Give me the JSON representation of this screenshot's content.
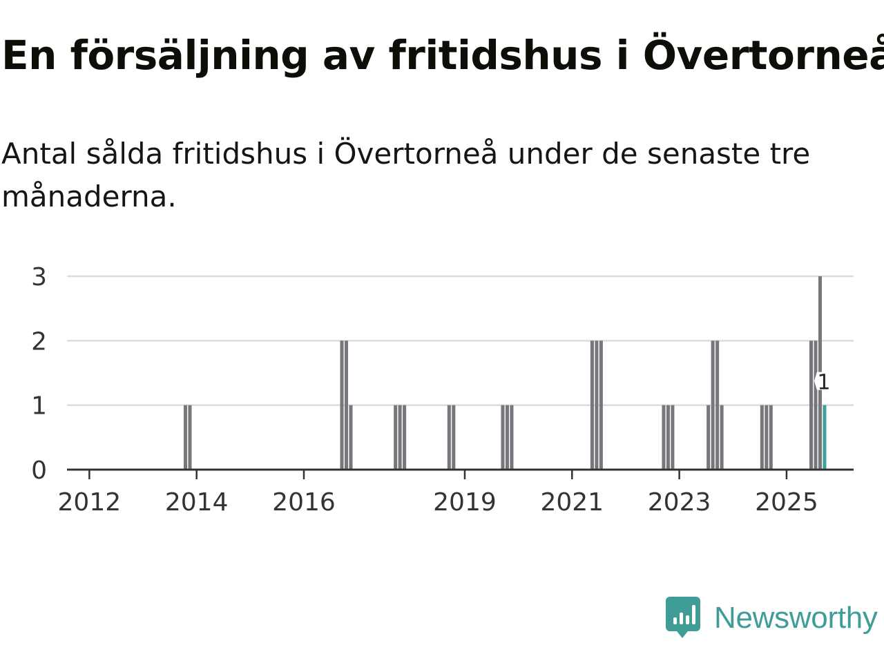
{
  "header": {
    "title": "En försäljning av fritidshus i Övertorneå",
    "subtitle": "Antal sålda fritidshus i Övertorneå under de senaste tre månaderna."
  },
  "chart_data": {
    "type": "bar",
    "title": "En försäljning av fritidshus i Övertorneå",
    "subtitle": "Antal sålda fritidshus i Övertorneå under de senaste tre månaderna.",
    "xlabel": "",
    "ylabel": "",
    "x_range": [
      "2011-08",
      "2026-04"
    ],
    "ylim": [
      0,
      3
    ],
    "y_ticks": [
      0,
      1,
      2,
      3
    ],
    "x_ticks": [
      "2012",
      "2014",
      "2016",
      "2019",
      "2021",
      "2023",
      "2025"
    ],
    "grid": true,
    "legend": "none",
    "bar_color": "#77767d",
    "highlight_color": "#3fa19c",
    "series": [
      {
        "values": [
          {
            "date": "2013-10",
            "value": 1
          },
          {
            "date": "2013-11",
            "value": 1
          },
          {
            "date": "2016-09",
            "value": 2
          },
          {
            "date": "2016-10",
            "value": 2
          },
          {
            "date": "2016-11",
            "value": 1
          },
          {
            "date": "2017-09",
            "value": 1
          },
          {
            "date": "2017-10",
            "value": 1
          },
          {
            "date": "2017-11",
            "value": 1
          },
          {
            "date": "2018-09",
            "value": 1
          },
          {
            "date": "2018-10",
            "value": 1
          },
          {
            "date": "2019-09",
            "value": 1
          },
          {
            "date": "2019-10",
            "value": 1
          },
          {
            "date": "2019-11",
            "value": 1
          },
          {
            "date": "2021-05",
            "value": 2
          },
          {
            "date": "2021-06",
            "value": 2
          },
          {
            "date": "2021-07",
            "value": 2
          },
          {
            "date": "2022-09",
            "value": 1
          },
          {
            "date": "2022-10",
            "value": 1
          },
          {
            "date": "2022-11",
            "value": 1
          },
          {
            "date": "2023-07",
            "value": 1
          },
          {
            "date": "2023-08",
            "value": 2
          },
          {
            "date": "2023-09",
            "value": 2
          },
          {
            "date": "2023-10",
            "value": 1
          },
          {
            "date": "2024-07",
            "value": 1
          },
          {
            "date": "2024-08",
            "value": 1
          },
          {
            "date": "2024-09",
            "value": 1
          },
          {
            "date": "2025-06",
            "value": 2
          },
          {
            "date": "2025-07",
            "value": 2
          },
          {
            "date": "2025-08",
            "value": 3
          },
          {
            "date": "2025-09",
            "value": 1,
            "highlight": true,
            "label": "1"
          }
        ]
      }
    ]
  },
  "brand": {
    "name": "Newsworthy",
    "icon": "newsworthy-logo-icon",
    "color": "#3f9c96"
  }
}
